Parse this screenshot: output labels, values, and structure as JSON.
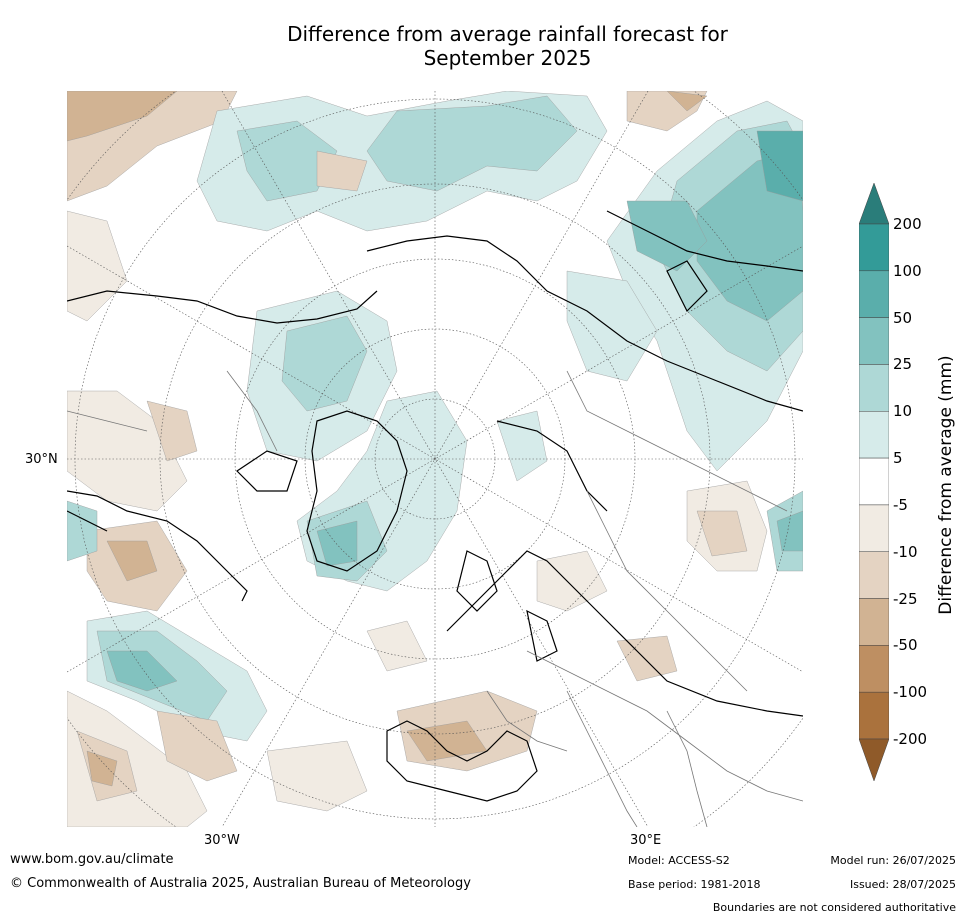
{
  "title_line1": "Difference from average rainfall forecast for",
  "title_line2": "September 2025",
  "axis_labels": {
    "left_lat": "30°N",
    "bottom_left_lon": "30°W",
    "bottom_right_lon": "30°E"
  },
  "colorbar": {
    "label": "Difference from average (mm)",
    "ticks": [
      "200",
      "100",
      "50",
      "25",
      "10",
      "5",
      "-5",
      "-10",
      "-25",
      "-50",
      "-100",
      "-200"
    ],
    "colors": {
      "above_200": "#2a7d7a",
      "100_200": "#339b98",
      "50_100": "#5aaeab",
      "25_50": "#82c2bf",
      "10_25": "#aed8d6",
      "5_10": "#d6ebea",
      "neutral": "#ffffff",
      "m10_m5": "#f1ebe3",
      "m25_m10": "#e4d3c2",
      "m50_m25": "#d1b393",
      "m100_m50": "#be8f62",
      "m200_m100": "#aa723d",
      "below_m200": "#8f5a29"
    }
  },
  "footer": {
    "website": "www.bom.gov.au/climate",
    "copyright": "© Commonwealth of Australia 2025, Australian Bureau of Meteorology",
    "model": "Model: ACCESS-S2",
    "base_period": "Base period: 1981-2018",
    "model_run": "Model run: 26/07/2025",
    "issued": "Issued: 28/07/2025",
    "disclaimer": "Boundaries are not considered authoritative"
  }
}
